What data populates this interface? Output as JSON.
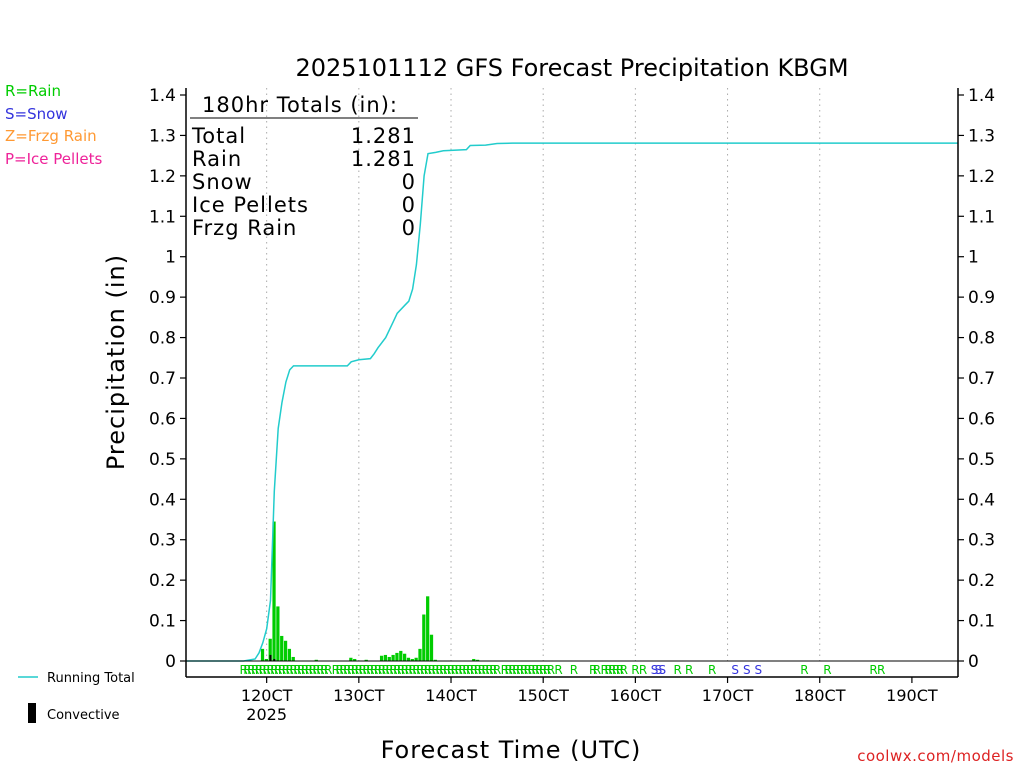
{
  "chart_data": {
    "type": "bar",
    "title": "2025101112 GFS Forecast Precipitation KBGM",
    "xlabel": "Forecast Time (UTC)",
    "ylabel": "Precipitation (in)",
    "ylim": [
      0,
      1.4
    ],
    "yticks": [
      "0",
      "0.1",
      "0.2",
      "0.3",
      "0.4",
      "0.5",
      "0.6",
      "0.7",
      "0.8",
      "0.9",
      "1",
      "1.1",
      "1.2",
      "1.3",
      "1.4"
    ],
    "x_range_hours": [
      -21,
      180
    ],
    "x_ticks": [
      {
        "hour": 0,
        "label": "120CT",
        "sub": "2025"
      },
      {
        "hour": 24,
        "label": "130CT",
        "sub": ""
      },
      {
        "hour": 48,
        "label": "140CT",
        "sub": ""
      },
      {
        "hour": 72,
        "label": "150CT",
        "sub": ""
      },
      {
        "hour": 96,
        "label": "160CT",
        "sub": ""
      },
      {
        "hour": 120,
        "label": "170CT",
        "sub": ""
      },
      {
        "hour": 144,
        "label": "180CT",
        "sub": ""
      },
      {
        "hour": 168,
        "label": "190CT",
        "sub": ""
      }
    ],
    "totals_box": {
      "heading": "180hr Totals (in):",
      "rows": [
        {
          "label": "Total",
          "value": "1.281"
        },
        {
          "label": "Rain",
          "value": "1.281"
        },
        {
          "label": "Snow",
          "value": "0"
        },
        {
          "label": "Ice Pellets",
          "value": "0"
        },
        {
          "label": "Frzg Rain",
          "value": "0"
        }
      ]
    },
    "type_legend": [
      {
        "text": "R=Rain",
        "color": "#00cc00"
      },
      {
        "text": "S=Snow",
        "color": "#3333dd"
      },
      {
        "text": "Z=Frzg Rain",
        "color": "#ff9933"
      },
      {
        "text": "P=Ice Pellets",
        "color": "#ee2299"
      }
    ],
    "series_legend": {
      "running_total": "Running Total",
      "convective": "Convective"
    },
    "colors": {
      "precip_bar": "#00cc00",
      "running_total": "#22cccc",
      "convective": "#000000",
      "grid": "#aaaaaa",
      "rain": "#00cc00",
      "snow": "#3333dd"
    },
    "bar_width_hours": 1,
    "bars": [
      {
        "hour": -1,
        "value": 0.03
      },
      {
        "hour": 0,
        "value": 0.005
      },
      {
        "hour": 1,
        "value": 0.055
      },
      {
        "hour": 2,
        "value": 0.345
      },
      {
        "hour": 3,
        "value": 0.135
      },
      {
        "hour": 4,
        "value": 0.062
      },
      {
        "hour": 5,
        "value": 0.05
      },
      {
        "hour": 6,
        "value": 0.03
      },
      {
        "hour": 7,
        "value": 0.01
      },
      {
        "hour": 13,
        "value": 0.003
      },
      {
        "hour": 22,
        "value": 0.008
      },
      {
        "hour": 23,
        "value": 0.005
      },
      {
        "hour": 26,
        "value": 0.003
      },
      {
        "hour": 30,
        "value": 0.013
      },
      {
        "hour": 31,
        "value": 0.015
      },
      {
        "hour": 32,
        "value": 0.01
      },
      {
        "hour": 33,
        "value": 0.015
      },
      {
        "hour": 34,
        "value": 0.02
      },
      {
        "hour": 35,
        "value": 0.025
      },
      {
        "hour": 36,
        "value": 0.018
      },
      {
        "hour": 37,
        "value": 0.008
      },
      {
        "hour": 38,
        "value": 0.005
      },
      {
        "hour": 39,
        "value": 0.008
      },
      {
        "hour": 40,
        "value": 0.03
      },
      {
        "hour": 41,
        "value": 0.115
      },
      {
        "hour": 42,
        "value": 0.16
      },
      {
        "hour": 43,
        "value": 0.065
      },
      {
        "hour": 44,
        "value": 0.003
      },
      {
        "hour": 54,
        "value": 0.005
      },
      {
        "hour": 55,
        "value": 0.003
      }
    ],
    "convective_bars": [
      {
        "hour": 1,
        "value": 0.015
      },
      {
        "hour": 2,
        "value": 0.005
      }
    ],
    "running_total": [
      [
        -21,
        0
      ],
      [
        -6,
        0
      ],
      [
        -3,
        0.005
      ],
      [
        -2,
        0.02
      ],
      [
        -1,
        0.045
      ],
      [
        0,
        0.08
      ],
      [
        1,
        0.15
      ],
      [
        2,
        0.42
      ],
      [
        3,
        0.575
      ],
      [
        4,
        0.64
      ],
      [
        5,
        0.69
      ],
      [
        6,
        0.72
      ],
      [
        7,
        0.73
      ],
      [
        20,
        0.73
      ],
      [
        21,
        0.73
      ],
      [
        22,
        0.74
      ],
      [
        24,
        0.745
      ],
      [
        27,
        0.748
      ],
      [
        28,
        0.76
      ],
      [
        29,
        0.775
      ],
      [
        31,
        0.8
      ],
      [
        33,
        0.84
      ],
      [
        34,
        0.86
      ],
      [
        36,
        0.88
      ],
      [
        37,
        0.89
      ],
      [
        38,
        0.92
      ],
      [
        39,
        0.98
      ],
      [
        40,
        1.08
      ],
      [
        41,
        1.2
      ],
      [
        42,
        1.255
      ],
      [
        44,
        1.258
      ],
      [
        46,
        1.262
      ],
      [
        52,
        1.265
      ],
      [
        53,
        1.275
      ],
      [
        57,
        1.276
      ],
      [
        60,
        1.28
      ],
      [
        64,
        1.281
      ],
      [
        180,
        1.281
      ]
    ],
    "type_markers": [
      {
        "from": -6,
        "to": 16,
        "step": 1,
        "letter": "R",
        "kind": "rain"
      },
      {
        "from": 18,
        "to": 23,
        "step": 1,
        "letter": "R",
        "kind": "rain"
      },
      {
        "from": 24,
        "to": 60,
        "step": 1,
        "letter": "R",
        "kind": "rain"
      },
      {
        "from": 62,
        "to": 74,
        "step": 1,
        "letter": "R",
        "kind": "rain"
      },
      {
        "from": 76,
        "to": 76,
        "step": 1,
        "letter": "R",
        "kind": "rain"
      },
      {
        "from": 80,
        "to": 80,
        "step": 1,
        "letter": "R",
        "kind": "rain"
      },
      {
        "from": 85,
        "to": 86,
        "step": 1,
        "letter": "R",
        "kind": "rain"
      },
      {
        "from": 88,
        "to": 93,
        "step": 1,
        "letter": "R",
        "kind": "rain"
      },
      {
        "from": 96,
        "to": 98,
        "step": 2,
        "letter": "R",
        "kind": "rain"
      },
      {
        "from": 101,
        "to": 101,
        "step": 1,
        "letter": "S",
        "kind": "snow"
      },
      {
        "from": 102,
        "to": 103,
        "step": 1,
        "letter": "S",
        "kind": "snow"
      },
      {
        "from": 107,
        "to": 110,
        "step": 3,
        "letter": "R",
        "kind": "rain"
      },
      {
        "from": 116,
        "to": 116,
        "step": 1,
        "letter": "R",
        "kind": "rain"
      },
      {
        "from": 122,
        "to": 125,
        "step": 3,
        "letter": "S",
        "kind": "snow"
      },
      {
        "from": 128,
        "to": 128,
        "step": 1,
        "letter": "S",
        "kind": "snow"
      },
      {
        "from": 140,
        "to": 140,
        "step": 1,
        "letter": "R",
        "kind": "rain"
      },
      {
        "from": 146,
        "to": 146,
        "step": 1,
        "letter": "R",
        "kind": "rain"
      },
      {
        "from": 158,
        "to": 160,
        "step": 2,
        "letter": "R",
        "kind": "rain"
      }
    ]
  },
  "credit": "coolwx.com/models"
}
